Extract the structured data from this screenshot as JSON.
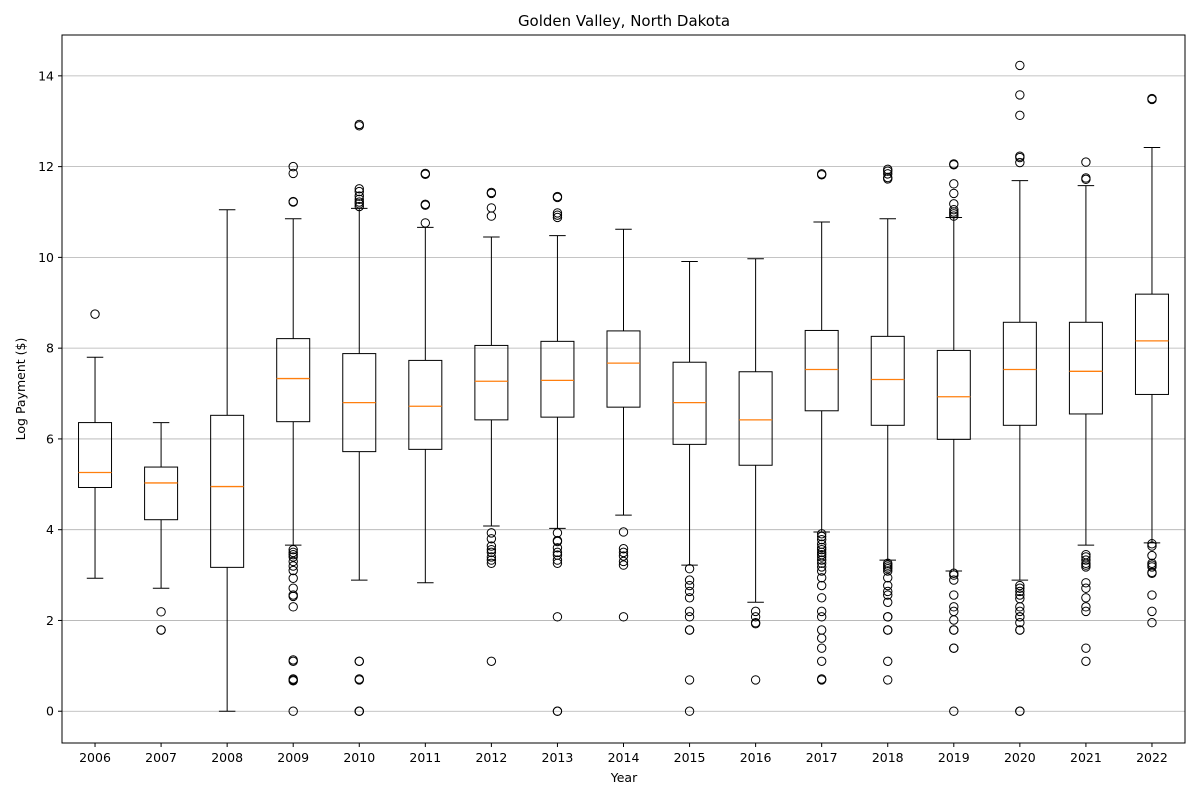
{
  "chart_data": {
    "type": "box",
    "title": "Golden Valley, North Dakota",
    "xlabel": "Year",
    "ylabel": "Log Payment ($)",
    "ylim": [
      -0.7,
      14.9
    ],
    "yticks": [
      0,
      2,
      4,
      6,
      8,
      10,
      12,
      14
    ],
    "grid": "horizontal",
    "colors": {
      "median": "#ff7f0e",
      "box": "#000000",
      "grid": "#b0b0b0"
    },
    "categories": [
      "2006",
      "2007",
      "2008",
      "2009",
      "2010",
      "2011",
      "2012",
      "2013",
      "2014",
      "2015",
      "2016",
      "2017",
      "2018",
      "2019",
      "2020",
      "2021",
      "2022"
    ],
    "boxes": [
      {
        "q1": 4.93,
        "median": 5.26,
        "q3": 6.36,
        "whislo": 2.93,
        "whishi": 7.8,
        "fliers": [
          8.75
        ]
      },
      {
        "q1": 4.22,
        "median": 5.03,
        "q3": 5.38,
        "whislo": 2.71,
        "whishi": 6.36,
        "fliers": [
          2.19,
          1.79,
          1.79
        ]
      },
      {
        "q1": 3.17,
        "median": 4.95,
        "q3": 6.52,
        "whislo": 0.0,
        "whishi": 11.05,
        "fliers": []
      },
      {
        "q1": 6.38,
        "median": 7.33,
        "q3": 8.21,
        "whislo": 3.66,
        "whishi": 10.85,
        "fliers": [
          12.0,
          11.85,
          11.23,
          11.22,
          3.56,
          3.5,
          3.45,
          3.4,
          3.3,
          3.2,
          3.1,
          2.93,
          2.71,
          2.56,
          2.53,
          2.3,
          1.13,
          1.1,
          0.71,
          0.69,
          0.67,
          0.0
        ]
      },
      {
        "q1": 5.72,
        "median": 6.8,
        "q3": 7.88,
        "whislo": 2.89,
        "whishi": 11.08,
        "fliers": [
          12.93,
          12.9,
          11.51,
          11.45,
          11.35,
          11.28,
          11.22,
          11.18,
          11.12,
          1.1,
          1.1,
          0.71,
          0.69,
          0.0,
          0.0,
          0.0
        ]
      },
      {
        "q1": 5.77,
        "median": 6.72,
        "q3": 7.73,
        "whislo": 2.83,
        "whishi": 10.66,
        "fliers": [
          11.85,
          11.83,
          11.17,
          11.15,
          10.76
        ]
      },
      {
        "q1": 6.42,
        "median": 7.27,
        "q3": 8.06,
        "whislo": 4.08,
        "whishi": 10.45,
        "fliers": [
          11.43,
          11.41,
          11.09,
          10.91,
          3.93,
          3.8,
          3.64,
          3.56,
          3.5,
          3.4,
          3.33,
          3.26,
          1.1
        ]
      },
      {
        "q1": 6.48,
        "median": 7.29,
        "q3": 8.15,
        "whislo": 4.03,
        "whishi": 10.48,
        "fliers": [
          11.34,
          11.32,
          10.98,
          10.93,
          10.88,
          3.93,
          3.76,
          3.74,
          3.6,
          3.5,
          3.44,
          3.33,
          3.26,
          2.08,
          0.0,
          0.0
        ]
      },
      {
        "q1": 6.7,
        "median": 7.67,
        "q3": 8.38,
        "whislo": 4.32,
        "whishi": 10.62,
        "fliers": [
          3.95,
          3.58,
          3.5,
          3.42,
          3.3,
          3.22,
          2.08
        ]
      },
      {
        "q1": 5.88,
        "median": 6.8,
        "q3": 7.69,
        "whislo": 3.22,
        "whishi": 9.91,
        "fliers": [
          3.14,
          2.89,
          2.77,
          2.64,
          2.5,
          2.2,
          2.08,
          1.79,
          1.79,
          0.69,
          0.0
        ]
      },
      {
        "q1": 5.42,
        "median": 6.42,
        "q3": 7.48,
        "whislo": 2.4,
        "whishi": 9.97,
        "fliers": [
          2.2,
          2.08,
          1.95,
          1.93,
          0.69
        ]
      },
      {
        "q1": 6.62,
        "median": 7.53,
        "q3": 8.39,
        "whislo": 3.95,
        "whishi": 10.78,
        "fliers": [
          11.84,
          11.82,
          3.91,
          3.85,
          3.78,
          3.68,
          3.61,
          3.56,
          3.5,
          3.45,
          3.4,
          3.33,
          3.26,
          3.18,
          3.09,
          2.94,
          2.77,
          2.5,
          2.2,
          2.08,
          1.79,
          1.61,
          1.39,
          1.1,
          0.71,
          0.69
        ]
      },
      {
        "q1": 6.3,
        "median": 7.31,
        "q3": 8.26,
        "whislo": 3.33,
        "whishi": 10.85,
        "fliers": [
          11.94,
          11.9,
          11.84,
          11.76,
          11.73,
          3.26,
          3.22,
          3.18,
          3.14,
          3.09,
          2.94,
          2.77,
          2.64,
          2.56,
          2.4,
          2.08,
          2.08,
          1.79,
          1.79,
          1.1,
          0.69
        ]
      },
      {
        "q1": 5.99,
        "median": 6.93,
        "q3": 7.95,
        "whislo": 3.09,
        "whishi": 10.88,
        "fliers": [
          12.06,
          12.04,
          11.62,
          11.41,
          11.18,
          11.05,
          11.0,
          10.96,
          10.91,
          3.04,
          3.0,
          2.89,
          2.56,
          2.3,
          2.2,
          2.01,
          1.79,
          1.79,
          1.39,
          1.39,
          0.0
        ]
      },
      {
        "q1": 6.3,
        "median": 7.53,
        "q3": 8.57,
        "whislo": 2.89,
        "whishi": 11.69,
        "fliers": [
          14.23,
          13.58,
          13.13,
          12.23,
          12.2,
          12.09,
          2.77,
          2.71,
          2.64,
          2.56,
          2.48,
          2.3,
          2.2,
          2.08,
          2.08,
          1.95,
          1.79,
          1.79,
          0.0,
          0.0
        ]
      },
      {
        "q1": 6.55,
        "median": 7.49,
        "q3": 8.57,
        "whislo": 3.66,
        "whishi": 11.58,
        "fliers": [
          12.1,
          11.75,
          11.72,
          3.45,
          3.4,
          3.33,
          3.26,
          3.22,
          3.18,
          2.83,
          2.71,
          2.5,
          2.3,
          2.2,
          1.39,
          1.1
        ]
      },
      {
        "q1": 6.98,
        "median": 8.16,
        "q3": 9.19,
        "whislo": 3.71,
        "whishi": 12.42,
        "fliers": [
          13.5,
          13.48,
          3.69,
          3.64,
          3.43,
          3.26,
          3.22,
          3.18,
          3.06,
          3.04,
          2.56,
          2.2,
          1.95
        ]
      }
    ]
  }
}
